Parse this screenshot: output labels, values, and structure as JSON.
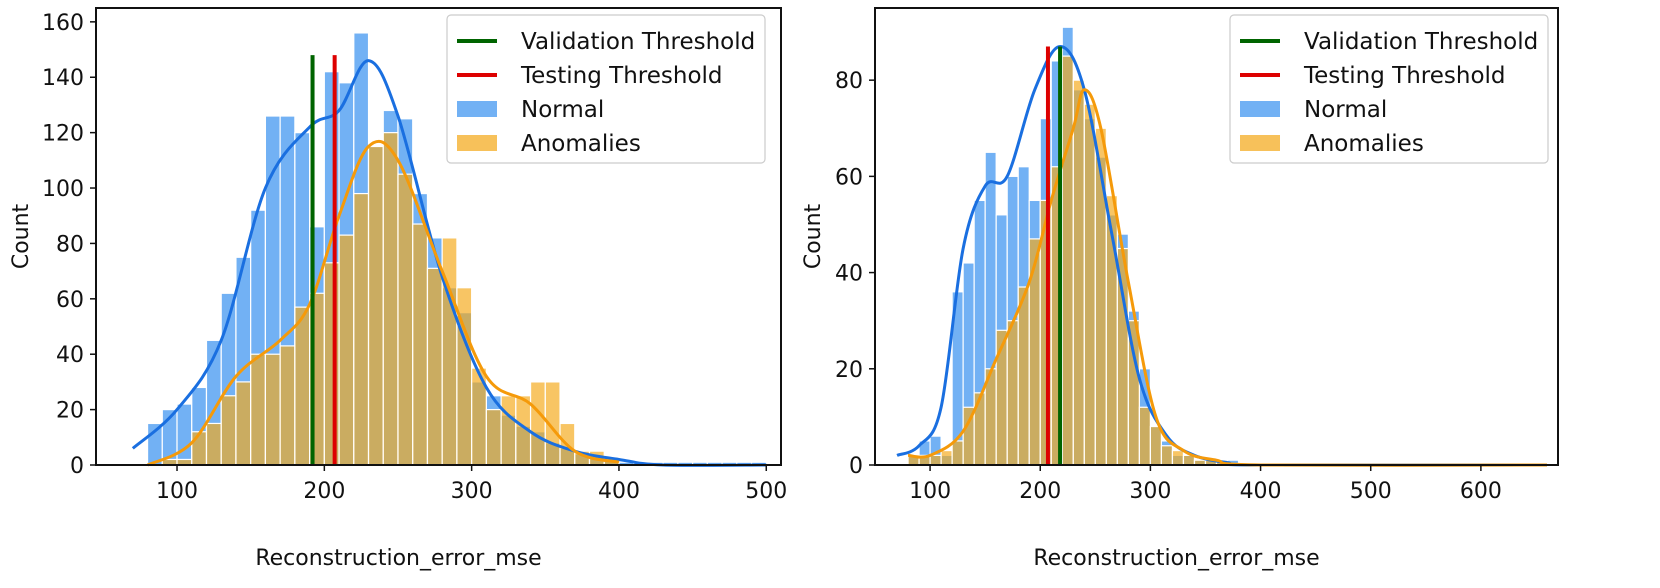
{
  "chart_data": [
    {
      "type": "histogram",
      "xlabel": "Reconstruction_error_mse",
      "ylabel": "Count",
      "xlim": [
        45,
        510
      ],
      "ylim": [
        0,
        165
      ],
      "xticks": [
        100,
        200,
        300,
        400,
        500
      ],
      "yticks": [
        0,
        20,
        40,
        60,
        80,
        100,
        120,
        140,
        160
      ],
      "legend": {
        "position": "top-right",
        "entries": [
          "Validation Threshold",
          "Testing Threshold",
          "Normal",
          "Anomalies"
        ]
      },
      "thresholds": [
        {
          "name": "Validation Threshold",
          "x": 192,
          "top": 148,
          "color": "#006400"
        },
        {
          "name": "Testing Threshold",
          "x": 207,
          "top": 148,
          "color": "#dd0000"
        }
      ],
      "series": [
        {
          "name": "Normal",
          "color": "#3c93f0",
          "kde_color": "#1a6fe0",
          "bin_edges": [
            70,
            80,
            90,
            100,
            110,
            120,
            130,
            140,
            150,
            160,
            170,
            180,
            190,
            200,
            210,
            220,
            230,
            240,
            250,
            260,
            270,
            280,
            290,
            300,
            310,
            320,
            330,
            340,
            350,
            360,
            370,
            380,
            390,
            400,
            410,
            420,
            430,
            440,
            450,
            460,
            470,
            480,
            490,
            500
          ],
          "counts": [
            0,
            15,
            20,
            22,
            28,
            45,
            62,
            75,
            92,
            126,
            126,
            120,
            86,
            142,
            138,
            156,
            115,
            128,
            125,
            98,
            82,
            64,
            55,
            30,
            25,
            18,
            14,
            12,
            8,
            6,
            4,
            3,
            2,
            1,
            1,
            1,
            1,
            1,
            1,
            1,
            1,
            1,
            1
          ],
          "kde": [
            [
              70,
              6
            ],
            [
              100,
              20
            ],
            [
              130,
              45
            ],
            [
              160,
              100
            ],
            [
              190,
              122
            ],
            [
              210,
              128
            ],
            [
              230,
              146
            ],
            [
              250,
              126
            ],
            [
              280,
              68
            ],
            [
              310,
              28
            ],
            [
              340,
              12
            ],
            [
              370,
              5
            ],
            [
              400,
              2
            ],
            [
              430,
              0
            ],
            [
              500,
              0
            ]
          ]
        },
        {
          "name": "Anomalies",
          "color": "#f4a91a",
          "kde_color": "#f59a0a",
          "bin_edges": [
            80,
            90,
            100,
            110,
            120,
            130,
            140,
            150,
            160,
            170,
            180,
            190,
            200,
            210,
            220,
            230,
            240,
            250,
            260,
            270,
            280,
            290,
            300,
            310,
            320,
            330,
            340,
            350,
            360,
            370,
            380,
            390,
            400
          ],
          "counts": [
            0,
            2,
            2,
            12,
            15,
            25,
            30,
            40,
            40,
            43,
            57,
            62,
            73,
            83,
            98,
            115,
            120,
            105,
            87,
            71,
            82,
            64,
            35,
            20,
            25,
            25,
            30,
            30,
            15,
            5,
            5,
            2
          ],
          "kde": [
            [
              80,
              0
            ],
            [
              110,
              8
            ],
            [
              140,
              32
            ],
            [
              170,
              45
            ],
            [
              190,
              58
            ],
            [
              210,
              90
            ],
            [
              230,
              115
            ],
            [
              250,
              110
            ],
            [
              280,
              70
            ],
            [
              310,
              32
            ],
            [
              340,
              22
            ],
            [
              370,
              5
            ],
            [
              400,
              1
            ]
          ]
        }
      ]
    },
    {
      "type": "histogram",
      "xlabel": "Reconstruction_error_mse",
      "ylabel": "Count",
      "xlim": [
        50,
        670
      ],
      "ylim": [
        0,
        95
      ],
      "xticks": [
        100,
        200,
        300,
        400,
        500,
        600
      ],
      "yticks": [
        0,
        20,
        40,
        60,
        80
      ],
      "legend": {
        "position": "top-right",
        "entries": [
          "Validation Threshold",
          "Testing Threshold",
          "Normal",
          "Anomalies"
        ]
      },
      "thresholds": [
        {
          "name": "Validation Threshold",
          "x": 218,
          "top": 87,
          "color": "#006400"
        },
        {
          "name": "Testing Threshold",
          "x": 207,
          "top": 87,
          "color": "#dd0000"
        }
      ],
      "series": [
        {
          "name": "Normal",
          "color": "#3c93f0",
          "kde_color": "#1a6fe0",
          "bin_edges": [
            70,
            80,
            90,
            100,
            110,
            120,
            130,
            140,
            150,
            160,
            170,
            180,
            190,
            200,
            210,
            220,
            230,
            240,
            250,
            260,
            270,
            280,
            290,
            300,
            310,
            320,
            330,
            340,
            350,
            360,
            370,
            380
          ],
          "counts": [
            0,
            2,
            5,
            6,
            2,
            36,
            42,
            55,
            65,
            52,
            60,
            62,
            55,
            72,
            84,
            91,
            78,
            72,
            64,
            52,
            48,
            32,
            20,
            8,
            5,
            2,
            2,
            1,
            1,
            1,
            1
          ],
          "kde": [
            [
              70,
              2
            ],
            [
              90,
              4
            ],
            [
              110,
              12
            ],
            [
              130,
              45
            ],
            [
              150,
              58
            ],
            [
              170,
              60
            ],
            [
              195,
              78
            ],
            [
              218,
              87
            ],
            [
              240,
              78
            ],
            [
              265,
              48
            ],
            [
              290,
              18
            ],
            [
              315,
              6
            ],
            [
              340,
              2
            ],
            [
              370,
              0.5
            ],
            [
              400,
              0
            ],
            [
              660,
              0
            ]
          ]
        },
        {
          "name": "Anomalies",
          "color": "#f4a91a",
          "kde_color": "#f59a0a",
          "bin_edges": [
            80,
            90,
            100,
            110,
            120,
            130,
            140,
            150,
            160,
            170,
            180,
            190,
            200,
            210,
            220,
            230,
            240,
            250,
            260,
            270,
            280,
            290,
            300,
            310,
            320,
            330,
            340,
            350,
            360,
            370
          ],
          "counts": [
            2,
            2,
            2,
            3,
            5,
            12,
            15,
            20,
            28,
            30,
            37,
            47,
            55,
            62,
            85,
            80,
            75,
            70,
            56,
            45,
            30,
            12,
            8,
            4,
            3,
            2,
            1,
            1,
            1
          ],
          "kde": [
            [
              80,
              2
            ],
            [
              100,
              2
            ],
            [
              130,
              7
            ],
            [
              160,
              22
            ],
            [
              190,
              38
            ],
            [
              210,
              55
            ],
            [
              230,
              70
            ],
            [
              240,
              78
            ],
            [
              255,
              70
            ],
            [
              280,
              38
            ],
            [
              305,
              10
            ],
            [
              330,
              3
            ],
            [
              360,
              1
            ],
            [
              400,
              0
            ],
            [
              660,
              0
            ]
          ]
        }
      ]
    }
  ]
}
